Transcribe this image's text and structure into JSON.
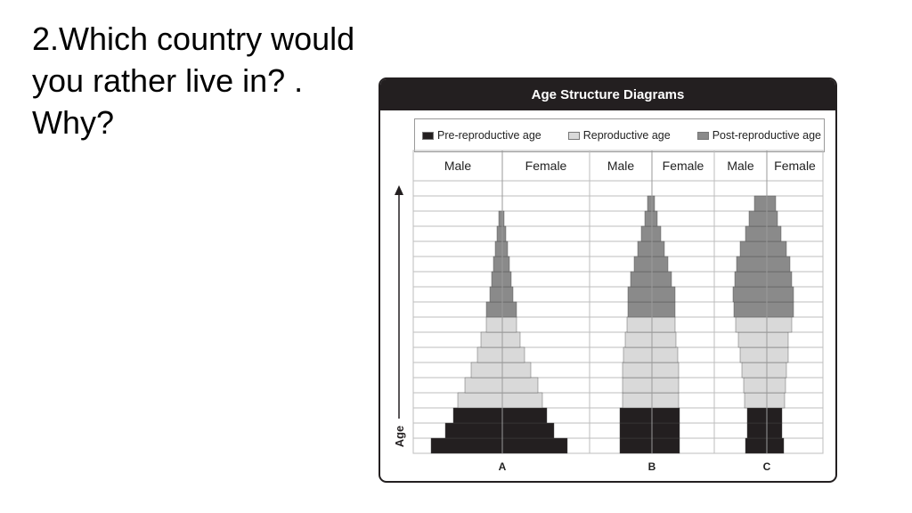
{
  "question": {
    "lines": [
      "2.Which country would",
      "you rather live in? .",
      "Why?"
    ]
  },
  "figure": {
    "title": "Age Structure Diagrams",
    "legend": [
      {
        "label": "Pre-reproductive age",
        "color": "#231f20"
      },
      {
        "label": "Reproductive age",
        "color": "#d9d9d9"
      },
      {
        "label": "Post-reproductive age",
        "color": "#8a8a8a"
      }
    ],
    "axis_label": "Age",
    "sex_labels": [
      "Male",
      "Female"
    ],
    "colors": {
      "pre": "#231f20",
      "repro": "#d9d9d9",
      "post": "#8a8a8a",
      "grid": "#bdbdbd"
    }
  },
  "chart_data": {
    "type": "bar",
    "categories_note": "age bands from youngest (index 0) to oldest (index 16); values are relative half-widths of male/female bars",
    "age_groups": [
      "pre",
      "pre",
      "pre",
      "repro",
      "repro",
      "repro",
      "repro",
      "repro",
      "repro",
      "post",
      "post",
      "post",
      "post",
      "post",
      "post",
      "post",
      "post"
    ],
    "series": [
      {
        "name": "A",
        "male": [
          80,
          64,
          55,
          50,
          42,
          35,
          28,
          24,
          18,
          18,
          14,
          12,
          10,
          8,
          6,
          4,
          0
        ],
        "female": [
          73,
          58,
          50,
          45,
          40,
          32,
          25,
          20,
          16,
          16,
          12,
          10,
          8,
          6,
          4,
          2,
          0
        ]
      },
      {
        "name": "B",
        "male": [
          36,
          36,
          36,
          33,
          33,
          33,
          32,
          30,
          28,
          27,
          27,
          24,
          20,
          16,
          12,
          8,
          5
        ],
        "female": [
          31,
          31,
          31,
          30,
          30,
          30,
          29,
          27,
          26,
          26,
          26,
          22,
          18,
          14,
          10,
          6,
          3
        ]
      },
      {
        "name": "C",
        "male": [
          24,
          22,
          22,
          25,
          26,
          28,
          30,
          32,
          35,
          37,
          38,
          36,
          34,
          30,
          24,
          20,
          14
        ],
        "female": [
          19,
          17,
          17,
          20,
          21,
          22,
          24,
          24,
          28,
          30,
          30,
          28,
          26,
          22,
          16,
          12,
          10
        ]
      }
    ]
  }
}
